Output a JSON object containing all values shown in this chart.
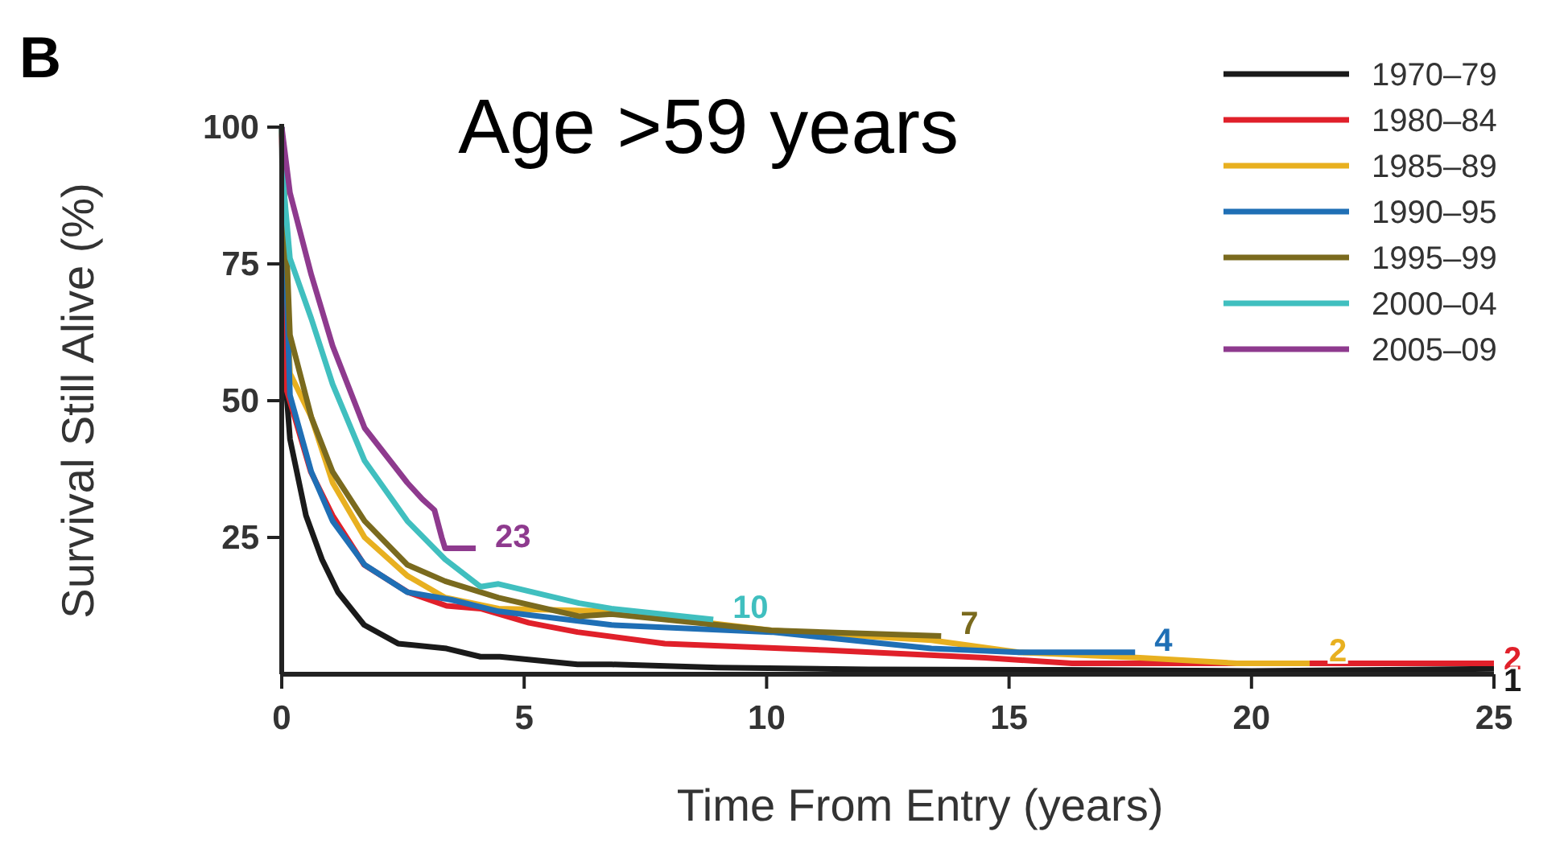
{
  "chart_data": {
    "type": "line",
    "title": "Age >59 years",
    "xlabel": "Time From Entry (years)",
    "ylabel": "Survival Still Alive (%)",
    "xlim": [
      0,
      25
    ],
    "ylim": [
      0,
      100
    ],
    "xticks": [
      0,
      5,
      10,
      15,
      20,
      25
    ],
    "yticks": [
      25,
      50,
      75,
      100
    ],
    "grid": false,
    "legend": "top right",
    "line_style": "solid",
    "annotations": [
      "B",
      {
        "text": "23",
        "x": 4.0,
        "y": 23
      },
      {
        "text": "10",
        "x": 8.9,
        "y": 10
      },
      {
        "text": "7",
        "x": 13.6,
        "y": 7
      },
      {
        "text": "4",
        "x": 17.6,
        "y": 4
      },
      {
        "text": "2",
        "x": 21.2,
        "y": 2
      },
      {
        "text": "2",
        "x": 25,
        "y": 2
      },
      {
        "text": "1",
        "x": 25,
        "y": 1
      }
    ],
    "series": [
      {
        "name": "1970–79",
        "color": "#1a1a1a",
        "x": [
          0,
          0.05,
          0.17,
          0.5,
          0.83,
          1.16,
          1.7,
          2.4,
          3.4,
          4.1,
          4.5,
          6.1,
          6.8,
          9,
          12.1,
          16,
          20,
          25
        ],
        "values": [
          100,
          57,
          43,
          29,
          21,
          15,
          9,
          5.6,
          4.7,
          3.2,
          3.2,
          1.8,
          1.8,
          1.2,
          0.9,
          0.8,
          0.6,
          1
        ]
      },
      {
        "name": "1980–84",
        "color": "#e0202a",
        "x": [
          0,
          0.1,
          0.6,
          1.05,
          1.7,
          2.6,
          3.4,
          4.1,
          5.1,
          6.1,
          7.9,
          11.2,
          14.5,
          16.3,
          25
        ],
        "values": [
          100,
          52,
          37,
          29,
          20,
          15,
          12.5,
          12,
          9.4,
          7.7,
          5.6,
          4.4,
          3,
          2,
          2
        ]
      },
      {
        "name": "1985–89",
        "color": "#e8b020",
        "x": [
          0,
          0.17,
          0.61,
          1.05,
          1.71,
          2.59,
          3.37,
          4.47,
          6.8,
          10.1,
          13.4,
          15.2,
          17.7,
          19.7,
          21.2
        ],
        "values": [
          100,
          55,
          47,
          35,
          25,
          18,
          14,
          12,
          11.5,
          8,
          6.2,
          4,
          3,
          2,
          2
        ]
      },
      {
        "name": "1990–95",
        "color": "#1f6fb5",
        "x": [
          0,
          0.17,
          0.61,
          1.05,
          1.71,
          2.59,
          3.5,
          4.47,
          6.8,
          10.1,
          13.4,
          15.2,
          16.2,
          17.6
        ],
        "values": [
          100,
          51,
          37,
          28,
          20,
          15,
          13.6,
          11.5,
          9,
          7.7,
          4.7,
          4,
          4,
          4
        ]
      },
      {
        "name": "1995–99",
        "color": "#7a6a1e",
        "x": [
          0,
          0.17,
          0.61,
          1.05,
          1.71,
          2.59,
          3.37,
          4.47,
          6.13,
          6.8,
          10.1,
          13.6
        ],
        "values": [
          100,
          62,
          47,
          37,
          28,
          20,
          17,
          14,
          10.6,
          11,
          8,
          7
        ]
      },
      {
        "name": "2000–04",
        "color": "#40bfbf",
        "x": [
          0,
          0.05,
          0.17,
          0.61,
          1.05,
          1.71,
          2.59,
          3.37,
          4.1,
          4.47,
          6.13,
          6.8,
          8.9
        ],
        "values": [
          100,
          88,
          76,
          65,
          53,
          39,
          28,
          21,
          16,
          16.5,
          13,
          12,
          10
        ]
      },
      {
        "name": "2005–09",
        "color": "#8e3a8e",
        "x": [
          0,
          0.17,
          0.61,
          1.05,
          1.71,
          2.15,
          2.59,
          2.9,
          3.15,
          3.3,
          3.37,
          4.0
        ],
        "values": [
          100,
          88,
          73,
          60,
          45,
          40,
          35,
          32,
          30,
          25,
          23,
          23
        ]
      }
    ]
  }
}
